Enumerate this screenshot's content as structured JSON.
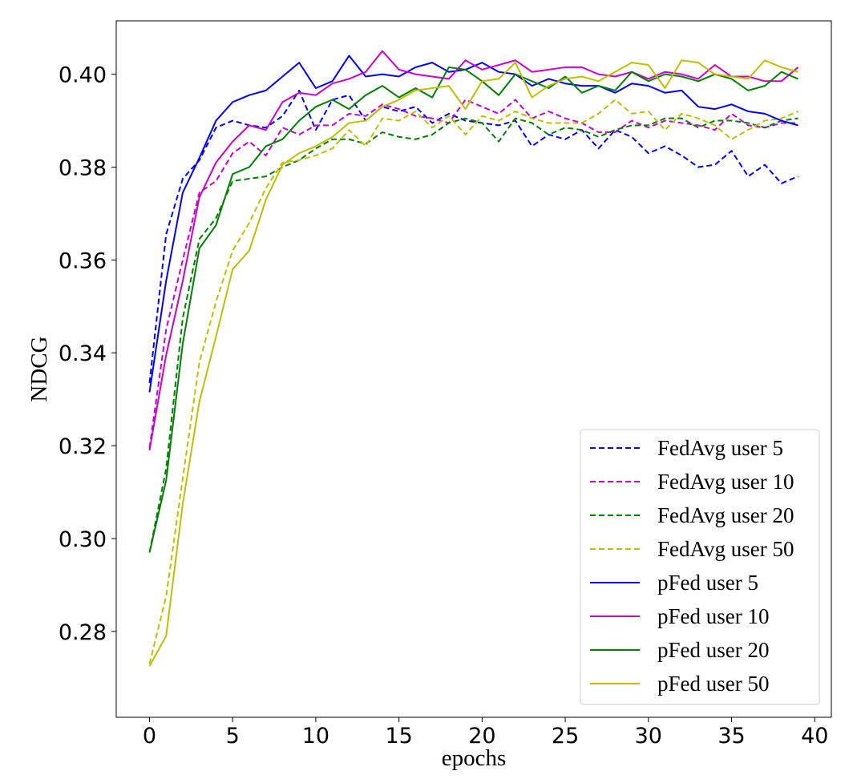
{
  "chart_data": {
    "type": "line",
    "title": "",
    "xlabel": "epochs",
    "ylabel": "NDCG",
    "xlim": [
      -2,
      41
    ],
    "ylim": [
      0.2615,
      0.4115
    ],
    "xticks": [
      0,
      5,
      10,
      15,
      20,
      25,
      30,
      35,
      40
    ],
    "xtick_labels": [
      "0",
      "5",
      "10",
      "15",
      "20",
      "25",
      "30",
      "35",
      "40"
    ],
    "yticks": [
      0.28,
      0.3,
      0.32,
      0.34,
      0.36,
      0.38,
      0.4
    ],
    "ytick_labels": [
      "0.28",
      "0.30",
      "0.32",
      "0.34",
      "0.36",
      "0.38",
      "0.40"
    ],
    "grid": false,
    "legend_position": "lower-right",
    "series": [
      {
        "name": "FedAvg user 5",
        "color": "#0000ff",
        "style": "dashed",
        "values": [
          0.3335,
          0.3655,
          0.3775,
          0.3815,
          0.3885,
          0.39,
          0.389,
          0.3885,
          0.391,
          0.3965,
          0.388,
          0.3945,
          0.3955,
          0.39,
          0.393,
          0.392,
          0.393,
          0.3895,
          0.3915,
          0.39,
          0.3895,
          0.389,
          0.39,
          0.3845,
          0.387,
          0.386,
          0.388,
          0.384,
          0.388,
          0.3865,
          0.383,
          0.3845,
          0.3825,
          0.38,
          0.3805,
          0.3835,
          0.378,
          0.3805,
          0.3765,
          0.378
        ]
      },
      {
        "name": "FedAvg user 10",
        "color": "#cc00cc",
        "style": "dashed",
        "values": [
          0.3195,
          0.345,
          0.36,
          0.3745,
          0.377,
          0.383,
          0.3855,
          0.3825,
          0.3885,
          0.387,
          0.389,
          0.389,
          0.3915,
          0.391,
          0.3935,
          0.3925,
          0.391,
          0.3905,
          0.3895,
          0.3945,
          0.393,
          0.3915,
          0.3945,
          0.3905,
          0.392,
          0.3905,
          0.3895,
          0.3875,
          0.3875,
          0.39,
          0.3885,
          0.39,
          0.3895,
          0.389,
          0.388,
          0.3915,
          0.389,
          0.3885,
          0.3895,
          0.3895
        ]
      },
      {
        "name": "FedAvg user 20",
        "color": "#008000",
        "style": "dashed",
        "values": [
          0.297,
          0.315,
          0.3475,
          0.3645,
          0.369,
          0.377,
          0.3775,
          0.378,
          0.38,
          0.3815,
          0.384,
          0.386,
          0.386,
          0.385,
          0.3875,
          0.3865,
          0.386,
          0.387,
          0.3895,
          0.3905,
          0.3895,
          0.3855,
          0.3905,
          0.3895,
          0.387,
          0.3885,
          0.388,
          0.3865,
          0.388,
          0.389,
          0.389,
          0.3905,
          0.3905,
          0.3885,
          0.39,
          0.39,
          0.3895,
          0.3885,
          0.39,
          0.3905
        ]
      },
      {
        "name": "FedAvg user 50",
        "color": "#bfbf00",
        "style": "dashed",
        "values": [
          0.273,
          0.2875,
          0.313,
          0.338,
          0.351,
          0.362,
          0.368,
          0.3755,
          0.381,
          0.3815,
          0.3825,
          0.384,
          0.388,
          0.3845,
          0.3905,
          0.39,
          0.392,
          0.3885,
          0.391,
          0.387,
          0.391,
          0.39,
          0.392,
          0.3905,
          0.3895,
          0.3895,
          0.3895,
          0.3915,
          0.3945,
          0.3915,
          0.392,
          0.388,
          0.3915,
          0.3905,
          0.389,
          0.386,
          0.388,
          0.39,
          0.3905,
          0.392
        ]
      },
      {
        "name": "pFed user 5",
        "color": "#0000ff",
        "style": "solid",
        "values": [
          0.3315,
          0.3555,
          0.3745,
          0.382,
          0.39,
          0.394,
          0.3955,
          0.3965,
          0.3995,
          0.4025,
          0.397,
          0.3985,
          0.404,
          0.3995,
          0.4,
          0.3995,
          0.4015,
          0.4025,
          0.4005,
          0.401,
          0.4025,
          0.4005,
          0.4,
          0.3975,
          0.399,
          0.398,
          0.3975,
          0.3975,
          0.396,
          0.398,
          0.3975,
          0.396,
          0.3965,
          0.393,
          0.3925,
          0.3935,
          0.392,
          0.3915,
          0.39,
          0.389
        ]
      },
      {
        "name": "pFed user 10",
        "color": "#cc00cc",
        "style": "solid",
        "values": [
          0.319,
          0.3395,
          0.3555,
          0.3735,
          0.381,
          0.3855,
          0.389,
          0.388,
          0.394,
          0.396,
          0.3955,
          0.398,
          0.399,
          0.4005,
          0.405,
          0.401,
          0.4,
          0.3995,
          0.399,
          0.403,
          0.401,
          0.402,
          0.403,
          0.4005,
          0.401,
          0.4015,
          0.4015,
          0.4,
          0.3995,
          0.4005,
          0.399,
          0.4005,
          0.4,
          0.399,
          0.402,
          0.3995,
          0.3995,
          0.3985,
          0.3985,
          0.4015
        ]
      },
      {
        "name": "pFed user 20",
        "color": "#008000",
        "style": "solid",
        "values": [
          0.297,
          0.3125,
          0.342,
          0.3625,
          0.3675,
          0.3785,
          0.38,
          0.3845,
          0.386,
          0.39,
          0.393,
          0.3945,
          0.3925,
          0.3955,
          0.3975,
          0.395,
          0.397,
          0.395,
          0.4015,
          0.401,
          0.3985,
          0.3955,
          0.4,
          0.3985,
          0.397,
          0.3995,
          0.396,
          0.3975,
          0.3965,
          0.4005,
          0.3985,
          0.4,
          0.3995,
          0.3985,
          0.4,
          0.399,
          0.3965,
          0.3975,
          0.4005,
          0.399
        ]
      },
      {
        "name": "pFed user 50",
        "color": "#bfbf00",
        "style": "solid",
        "values": [
          0.2725,
          0.279,
          0.3075,
          0.3295,
          0.3435,
          0.358,
          0.362,
          0.373,
          0.3805,
          0.383,
          0.3845,
          0.3865,
          0.3895,
          0.39,
          0.393,
          0.3945,
          0.3965,
          0.397,
          0.3975,
          0.3925,
          0.3985,
          0.399,
          0.4025,
          0.395,
          0.3975,
          0.399,
          0.3995,
          0.3985,
          0.4005,
          0.4025,
          0.402,
          0.397,
          0.403,
          0.4025,
          0.4,
          0.3995,
          0.399,
          0.403,
          0.4015,
          0.4005
        ]
      }
    ]
  }
}
